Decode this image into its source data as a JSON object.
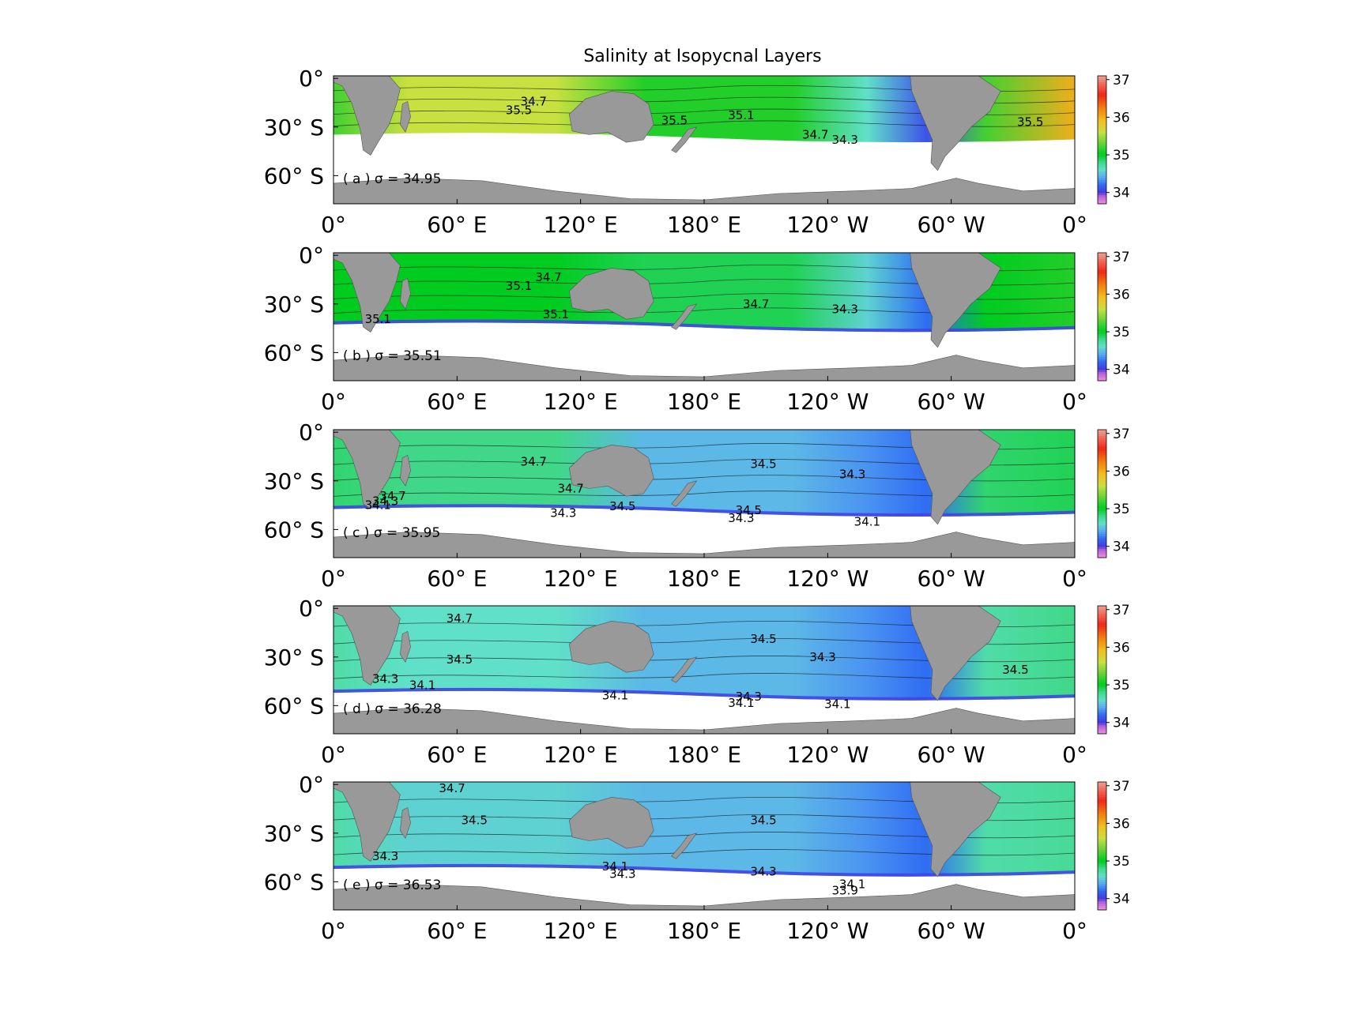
{
  "figure": {
    "title": "Salinity at Isopycnal Layers"
  },
  "chart_data": {
    "type": "heatmap",
    "title": "Salinity at Isopycnal Layers",
    "x_ticks": [
      "0°",
      "60° E",
      "120° E",
      "180° E",
      "120° W",
      "60° W",
      "0°"
    ],
    "y_ticks": [
      "0°",
      "30° S",
      "60° S"
    ],
    "colorbar": {
      "ticks": [
        "37",
        "36",
        "35",
        "34"
      ],
      "range": [
        33.7,
        37.1
      ],
      "stops": [
        {
          "value": 33.7,
          "color": "#f090e8"
        },
        {
          "value": 33.9,
          "color": "#b060d8"
        },
        {
          "value": 34.0,
          "color": "#4a38e0"
        },
        {
          "value": 34.2,
          "color": "#2f6cf2"
        },
        {
          "value": 34.4,
          "color": "#5aaaf0"
        },
        {
          "value": 34.6,
          "color": "#60e0c8"
        },
        {
          "value": 34.8,
          "color": "#40d888"
        },
        {
          "value": 35.0,
          "color": "#00cc20"
        },
        {
          "value": 35.3,
          "color": "#66d23a"
        },
        {
          "value": 35.6,
          "color": "#c8e040"
        },
        {
          "value": 35.9,
          "color": "#f0c020"
        },
        {
          "value": 36.2,
          "color": "#f08a10"
        },
        {
          "value": 36.6,
          "color": "#f02818"
        },
        {
          "value": 37.1,
          "color": "#f0a090"
        }
      ]
    },
    "panels": [
      {
        "label": "( a ) σ = 34.95",
        "contour_labels": [
          "34.7",
          "35.5",
          "35.5",
          "35.1",
          "34.7",
          "34.3",
          "35.5"
        ],
        "representative_salinity": {
          "atlantic_west": 36.0,
          "atlantic_east": 35.2,
          "indian": 35.6,
          "pacific": 35.1,
          "south_american_coast": 34.1
        }
      },
      {
        "label": "( b ) σ = 35.51",
        "contour_labels": [
          "35.1",
          "34.7",
          "35.1",
          "35.1",
          "34.7",
          "34.3"
        ],
        "representative_salinity": {
          "atlantic_west": 35.1,
          "atlantic_east": 35.0,
          "indian": 35.0,
          "pacific": 34.9,
          "south_american_coast": 34.2
        }
      },
      {
        "label": "( c ) σ = 35.95",
        "contour_labels": [
          "34.7",
          "34.7",
          "34.5",
          "34.3",
          "34.5",
          "34.3",
          "34.1",
          "34.5",
          "34.3",
          "34.1",
          "34.7",
          "34.3"
        ],
        "representative_salinity": {
          "atlantic_west": 34.9,
          "atlantic_east": 34.85,
          "indian": 34.8,
          "pacific": 34.45,
          "south_american_coast": 34.2
        }
      },
      {
        "label": "( d ) σ = 36.28",
        "contour_labels": [
          "34.7",
          "34.5",
          "34.3",
          "34.1",
          "34.5",
          "34.3",
          "34.1",
          "34.3",
          "34.1",
          "34.1",
          "34.5"
        ],
        "representative_salinity": {
          "atlantic_west": 34.8,
          "atlantic_east": 34.7,
          "indian": 34.6,
          "pacific": 34.45,
          "south_american_coast": 34.2
        }
      },
      {
        "label": "( e ) σ = 36.53",
        "contour_labels": [
          "34.7",
          "34.5",
          "34.5",
          "34.3",
          "34.3",
          "34.1",
          "34.3",
          "33.9",
          "34.1"
        ],
        "representative_salinity": {
          "atlantic_west": 34.75,
          "atlantic_east": 34.7,
          "indian": 34.55,
          "pacific": 34.45,
          "south_american_coast": 34.2
        }
      }
    ]
  }
}
